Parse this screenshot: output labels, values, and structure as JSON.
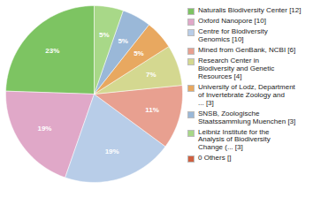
{
  "chart_data": {
    "type": "pie",
    "categories": [
      "Naturalis Biodiversity Center [12]",
      "Oxford Nanopore [10]",
      "Centre for Biodiversity\nGenomics [10]",
      "Mined from GenBank, NCBI [6]",
      "Research Center in\nBiodiversity and Genetic\nResources [4]",
      "University of Lodz, Department\nof Invertebrate Zoology and\n... [3]",
      "SNSB, Zoologische\nStaatssammlung Muenchen [3]",
      "Leibniz Institute for the\nAnalysis of Biodiversity\nChange (... [3]",
      "0 Others []"
    ],
    "values": [
      23,
      19,
      19,
      11,
      7,
      5,
      5,
      5,
      0
    ],
    "value_labels": [
      "23%",
      "19%",
      "19%",
      "11%",
      "7%",
      "5%",
      "5%",
      "5%",
      null
    ],
    "colors": [
      "#7dc462",
      "#e0a8c8",
      "#b8cde8",
      "#e8a090",
      "#d4d890",
      "#e8a860",
      "#9ab8d8",
      "#a8d888",
      "#d06040"
    ],
    "data_labels": true,
    "legend": "right"
  }
}
